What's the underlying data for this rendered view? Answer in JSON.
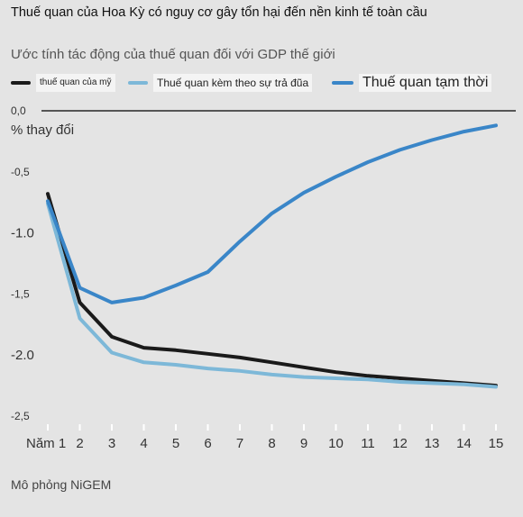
{
  "title": "Thuế quan của Hoa Kỳ có nguy cơ gây tổn hại đến nền kinh tế toàn cầu",
  "subtitle": "Ước tính tác động của thuế quan đối với GDP thế giới",
  "source": "Mô phỏng NiGEM",
  "chart_data": {
    "type": "line",
    "title": "Ước tính tác động của thuế quan đối với GDP thế giới",
    "ylabel": "% thay đổi",
    "xlabel": "",
    "ylim": [
      -2.5,
      0
    ],
    "yticks": [
      {
        "value": 0,
        "label": "0,0",
        "big": false
      },
      {
        "value": -0.5,
        "label": "-0,5",
        "big": false
      },
      {
        "value": -1.0,
        "label": "-1.0",
        "big": true
      },
      {
        "value": -1.5,
        "label": "-1,5",
        "big": false
      },
      {
        "value": -2.0,
        "label": "-2.0",
        "big": true
      },
      {
        "value": -2.5,
        "label": "-2,5",
        "big": false
      }
    ],
    "x": [
      1,
      2,
      3,
      4,
      5,
      6,
      7,
      8,
      9,
      10,
      11,
      12,
      13,
      14,
      15
    ],
    "xticklabels": [
      "Năm 1",
      "2",
      "3",
      "4",
      "5",
      "6",
      "7",
      "8",
      "9",
      "10",
      "11",
      "12",
      "13",
      "14",
      "15"
    ],
    "grid": false,
    "legend_position": "top",
    "series": [
      {
        "name": "thuế quan của mỹ",
        "color": "#1a1a1a",
        "values": [
          -0.68,
          -1.57,
          -1.85,
          -1.94,
          -1.96,
          -1.99,
          -2.02,
          -2.06,
          -2.1,
          -2.14,
          -2.17,
          -2.19,
          -2.21,
          -2.23,
          -2.25
        ]
      },
      {
        "name": "Thuế quan kèm theo sự trả đũa",
        "color": "#7db8d8",
        "values": [
          -0.76,
          -1.7,
          -1.98,
          -2.06,
          -2.08,
          -2.11,
          -2.13,
          -2.16,
          -2.18,
          -2.19,
          -2.2,
          -2.22,
          -2.23,
          -2.24,
          -2.26
        ]
      },
      {
        "name": "Thuế quan tạm thời",
        "color": "#3a86c8",
        "values": [
          -0.74,
          -1.45,
          -1.57,
          -1.53,
          -1.43,
          -1.32,
          -1.07,
          -0.84,
          -0.67,
          -0.54,
          -0.42,
          -0.32,
          -0.24,
          -0.17,
          -0.12
        ]
      }
    ]
  }
}
